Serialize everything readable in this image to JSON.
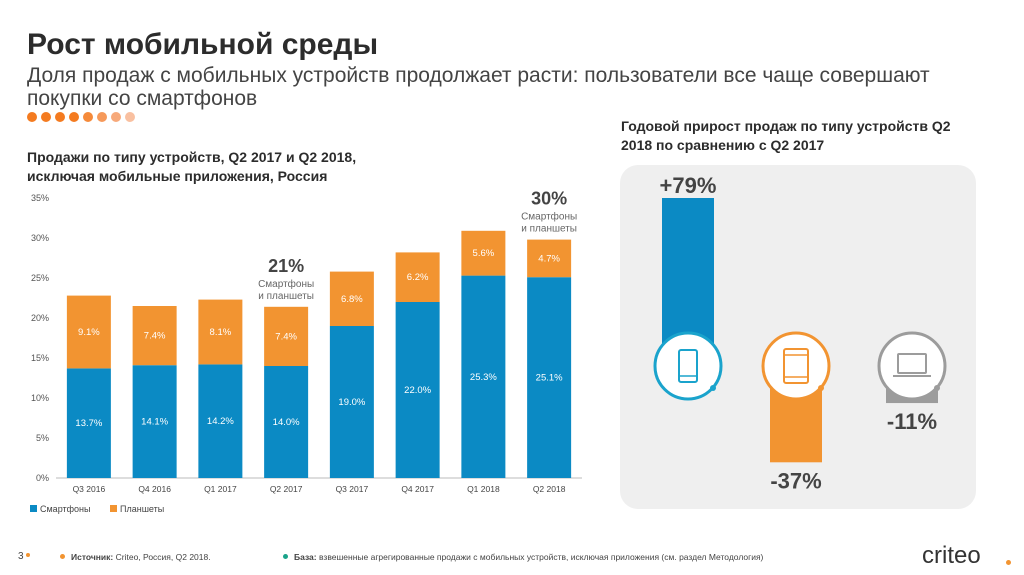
{
  "header": {
    "title": "Рост мобильной среды",
    "subtitle": "Доля продаж с мобильных устройств продолжает расти: пользователи все чаще совершают покупки со смартфонов",
    "dots": [
      "#f47b20",
      "#f47b20",
      "#f47b20",
      "#f47b20",
      "#f58a3a",
      "#f6995a",
      "#f7a97a",
      "#f9c0a0"
    ]
  },
  "colors": {
    "smartphones": "#0b8ac4",
    "tablets": "#f29431",
    "desktop": "#9c9c9c",
    "smart_ring": "#1aa3cc"
  },
  "chart_data": [
    {
      "type": "bar",
      "stacked": true,
      "title": "Продажи по типу устройств, Q2 2017 и Q2 2018, исключая мобильные приложения, Россия",
      "categories": [
        "Q3 2016",
        "Q4 2016",
        "Q1 2017",
        "Q2 2017",
        "Q3 2017",
        "Q4 2017",
        "Q1 2018",
        "Q2 2018"
      ],
      "series": [
        {
          "name": "Смартфоны",
          "values": [
            13.7,
            14.1,
            14.2,
            14.0,
            19.0,
            22.0,
            25.3,
            25.1
          ],
          "labels": [
            "13.7%",
            "14.1%",
            "14.2%",
            "14.0%",
            "19.0%",
            "22.0%",
            "25.3%",
            "25.1%"
          ]
        },
        {
          "name": "Планшеты",
          "values": [
            9.1,
            7.4,
            8.1,
            7.4,
            6.8,
            6.2,
            5.6,
            4.7
          ],
          "labels": [
            "9.1%",
            "7.4%",
            "8.1%",
            "7.4%",
            "6.8%",
            "6.2%",
            "5.6%",
            "4.7%"
          ]
        }
      ],
      "ylim": [
        0,
        35
      ],
      "yticks": [
        "0%",
        "5%",
        "10%",
        "15%",
        "20%",
        "25%",
        "30%",
        "35%"
      ],
      "grid": false,
      "legend": "bottom-left",
      "annotations": [
        {
          "category": "Q2 2017",
          "value": "21%",
          "text_line1": "Смартфоны",
          "text_line2": "и планшеты"
        },
        {
          "category": "Q2 2018",
          "value": "30%",
          "text_line1": "Смартфоны",
          "text_line2": "и планшеты"
        }
      ]
    },
    {
      "type": "bar",
      "title": "Годовой прирост продаж по типу устройств Q2 2018 по сравнению с Q2 2017",
      "categories": [
        "smartphone-icon",
        "tablet-icon",
        "laptop-icon"
      ],
      "values": [
        79,
        -37,
        -11
      ],
      "labels": [
        "+79%",
        "-37%",
        "-11%"
      ]
    }
  ],
  "footer": {
    "page_number": "3",
    "source_label": "Источник:",
    "source_text": "Criteo, Россия, Q2 2018.",
    "base_label": "База:",
    "base_text": "взвешенные агрегированные продажи с мобильных устройств, исключая приложения (см. раздел Методология)",
    "logo": "criteo"
  }
}
